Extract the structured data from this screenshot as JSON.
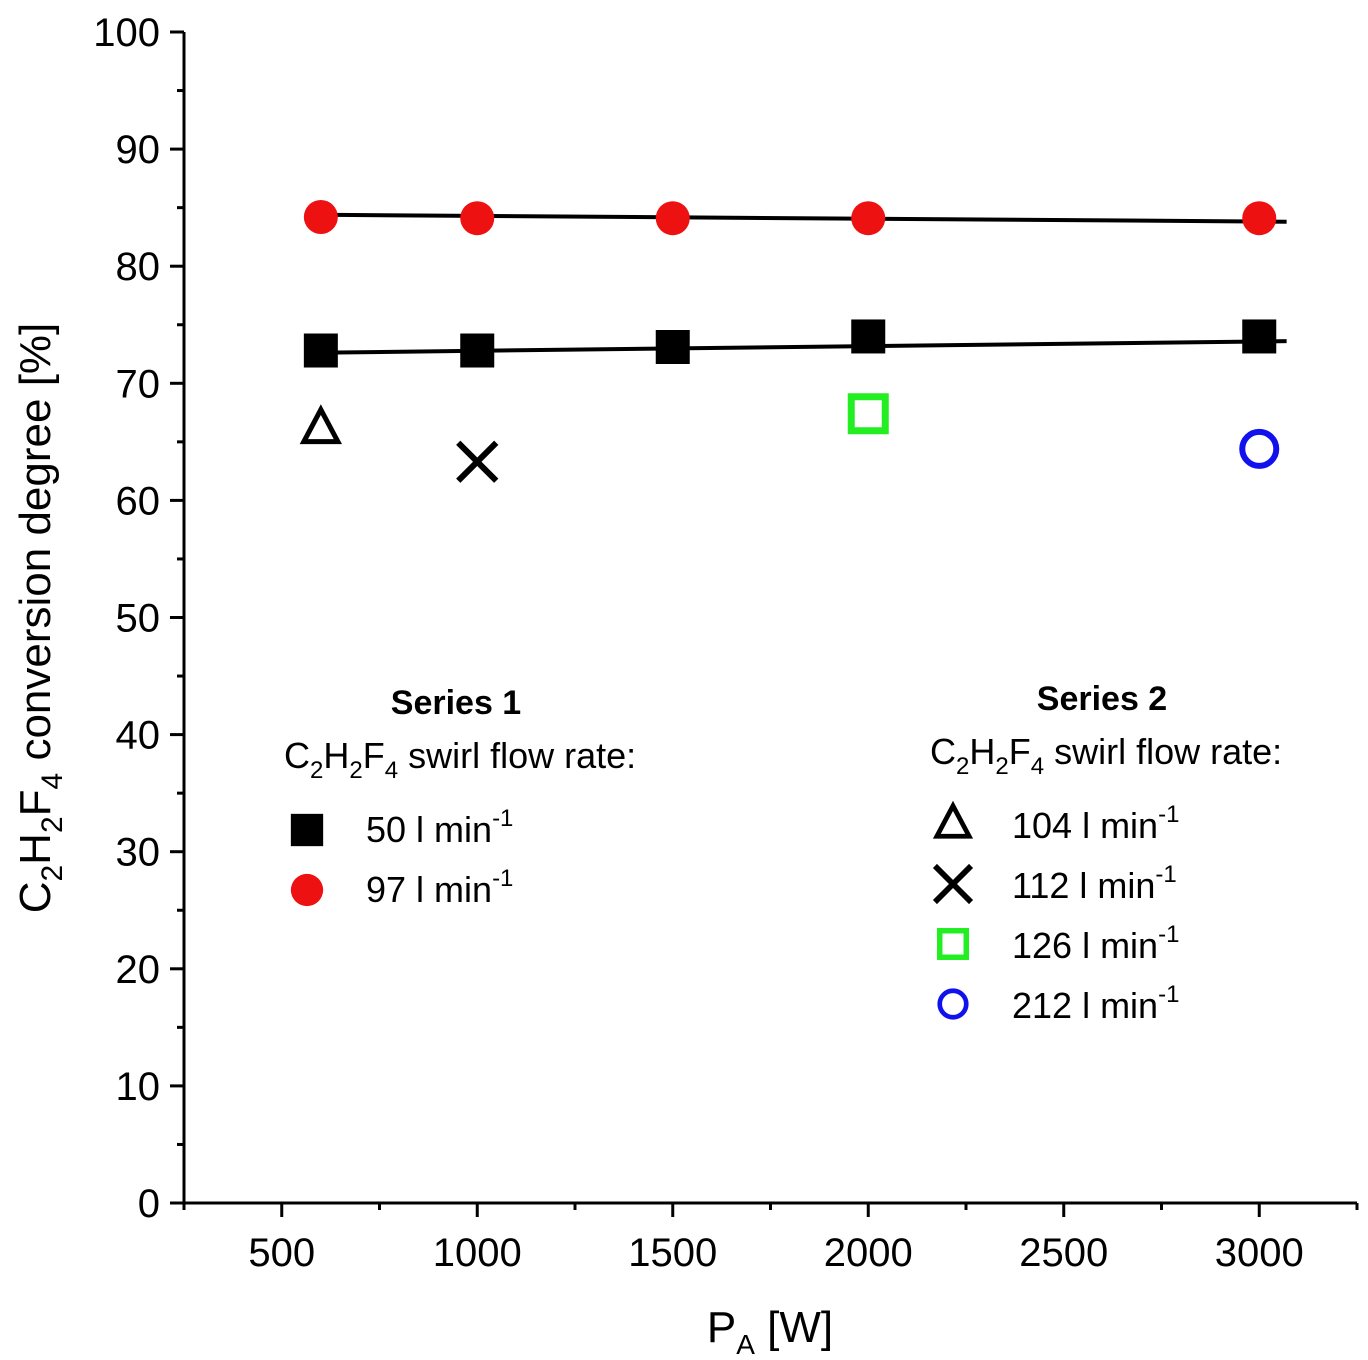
{
  "chart_data": {
    "type": "scatter",
    "xlabel": {
      "main": "P",
      "sub": "A",
      "unit": " [W]"
    },
    "ylabel": {
      "parts": [
        {
          "t": "C",
          "sub": false
        },
        {
          "t": "2",
          "sub": true
        },
        {
          "t": "H",
          "sub": false
        },
        {
          "t": "2",
          "sub": true
        },
        {
          "t": "F",
          "sub": false
        },
        {
          "t": "4",
          "sub": true
        },
        {
          "t": " conversion degree [%]",
          "sub": false
        }
      ]
    },
    "xlim": [
      250,
      3250
    ],
    "ylim": [
      0,
      100
    ],
    "x_ticks": [
      500,
      1000,
      1500,
      2000,
      2500,
      3000
    ],
    "x_tick_labels": [
      "500",
      "1000",
      "1500",
      "2000",
      "2500",
      "3000"
    ],
    "y_ticks": [
      0,
      10,
      20,
      30,
      40,
      50,
      60,
      70,
      80,
      90,
      100
    ],
    "y_tick_labels": [
      "0",
      "10",
      "20",
      "30",
      "40",
      "50",
      "60",
      "70",
      "80",
      "90",
      "100"
    ],
    "grid": false,
    "series": [
      {
        "id": "s50",
        "marker": "square",
        "color": "#000000",
        "x": [
          600,
          1000,
          1500,
          2000,
          3000
        ],
        "y": [
          72.8,
          72.8,
          73.1,
          74.0,
          74.0
        ]
      },
      {
        "id": "s97",
        "marker": "circle",
        "color": "#ee1111",
        "x": [
          600,
          1000,
          1500,
          2000,
          3000
        ],
        "y": [
          84.2,
          84.1,
          84.1,
          84.1,
          84.1
        ]
      },
      {
        "id": "s104",
        "marker": "triangle-open",
        "color": "#000000",
        "x": [
          600
        ],
        "y": [
          66.3
        ]
      },
      {
        "id": "s112",
        "marker": "cross",
        "color": "#000000",
        "x": [
          1000
        ],
        "y": [
          63.3
        ]
      },
      {
        "id": "s126",
        "marker": "square-open",
        "color": "#22ee22",
        "x": [
          2000
        ],
        "y": [
          67.4
        ]
      },
      {
        "id": "s212",
        "marker": "circle-open",
        "color": "#1111ee",
        "x": [
          3000
        ],
        "y": [
          64.4
        ]
      }
    ],
    "fit_lines": [
      {
        "x": [
          560,
          3070
        ],
        "y": [
          72.6,
          73.6
        ],
        "color": "#000000"
      },
      {
        "x": [
          560,
          3070
        ],
        "y": [
          84.4,
          83.8
        ],
        "color": "#000000"
      }
    ],
    "legend": {
      "series1": {
        "title": "Series 1",
        "subtitle": {
          "a": "C",
          "s1": "2",
          "b": "H",
          "s2": "2",
          "c": "F",
          "s3": "4",
          "d": " swirl flow rate:"
        },
        "entries": [
          {
            "series": "s50",
            "value": "50 l min",
            "sup": "-1"
          },
          {
            "series": "s97",
            "value": "97 l min",
            "sup": "-1"
          }
        ]
      },
      "series2": {
        "title": "Series 2",
        "subtitle": {
          "a": "C",
          "s1": "2",
          "b": "H",
          "s2": "2",
          "c": "F",
          "s3": "4",
          "d": " swirl flow rate:"
        },
        "entries": [
          {
            "series": "s104",
            "value": "104 l min",
            "sup": "-1"
          },
          {
            "series": "s112",
            "value": "112 l min",
            "sup": "-1"
          },
          {
            "series": "s126",
            "value": "126 l min",
            "sup": "-1"
          },
          {
            "series": "s212",
            "value": "212 l min",
            "sup": "-1"
          }
        ]
      }
    }
  }
}
